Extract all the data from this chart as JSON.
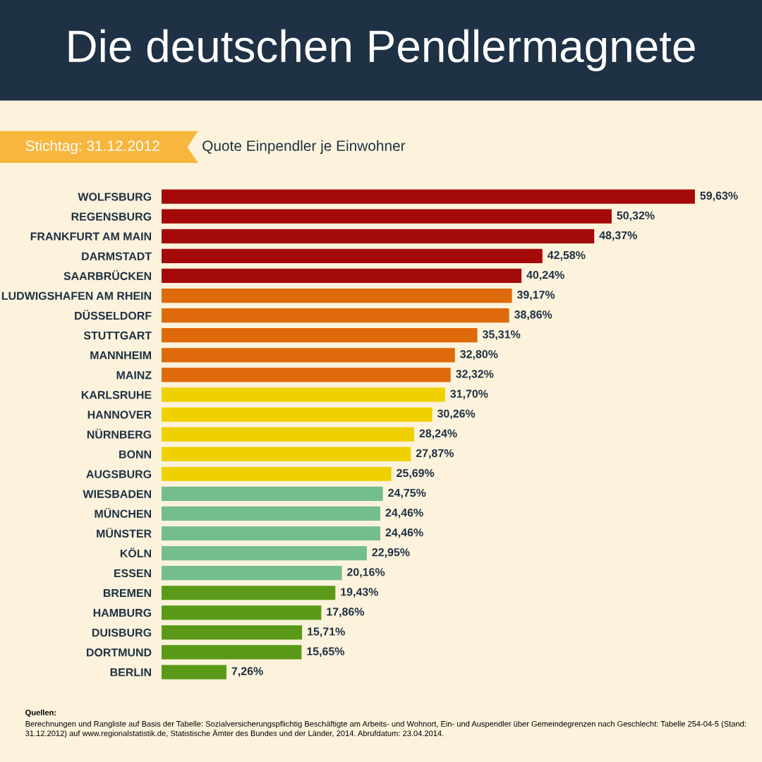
{
  "chart_data": {
    "type": "bar",
    "orientation": "horizontal",
    "title": "Die deutschen Pendlermagnete",
    "subtitle": "Quote Einpendler je Einwohner",
    "categories": [
      "WOLFSBURG",
      "REGENSBURG",
      "FRANKFURT AM MAIN",
      "DARMSTADT",
      "SAARBRÜCKEN",
      "LUDWIGSHAFEN AM RHEIN",
      "DÜSSELDORF",
      "STUTTGART",
      "MANNHEIM",
      "MAINZ",
      "KARLSRUHE",
      "HANNOVER",
      "NÜRNBERG",
      "BONN",
      "AUGSBURG",
      "WIESBADEN",
      "MÜNCHEN",
      "MÜNSTER",
      "KÖLN",
      "ESSEN",
      "BREMEN",
      "HAMBURG",
      "DUISBURG",
      "DORTMUND",
      "BERLIN"
    ],
    "values": [
      59.63,
      50.32,
      48.37,
      42.58,
      40.24,
      39.17,
      38.86,
      35.31,
      32.8,
      32.32,
      31.7,
      30.26,
      28.24,
      27.87,
      25.69,
      24.75,
      24.46,
      24.46,
      22.95,
      20.16,
      19.43,
      17.86,
      15.71,
      15.65,
      7.26
    ],
    "value_labels": [
      "59,63%",
      "50,32%",
      "48,37%",
      "42,58%",
      "40,24%",
      "39,17%",
      "38,86%",
      "35,31%",
      "32,80%",
      "32,32%",
      "31,70%",
      "30,26%",
      "28,24%",
      "27,87%",
      "25,69%",
      "24,75%",
      "24,46%",
      "24,46%",
      "22,95%",
      "20,16%",
      "19,43%",
      "17,86%",
      "15,71%",
      "15,65%",
      "7,26%"
    ],
    "colors": [
      "#a50a0a",
      "#a50a0a",
      "#a50a0a",
      "#a50a0a",
      "#a50a0a",
      "#de6a0c",
      "#de6a0c",
      "#de6a0c",
      "#de6a0c",
      "#de6a0c",
      "#efd000",
      "#efd000",
      "#efd000",
      "#efd000",
      "#efd000",
      "#74be8c",
      "#74be8c",
      "#74be8c",
      "#74be8c",
      "#74be8c",
      "#5a9a18",
      "#5a9a18",
      "#5a9a18",
      "#5a9a18",
      "#5a9a18"
    ],
    "annotations": [
      "Stichtag: 31.12.2012",
      "Quellen:",
      "Berechnungen und Rangliste auf Basis der Tabelle: Sozialversicherungspflichtig Beschäftigte am Arbeits- und Wohnort, Ein- und Auspendler über Gemeindegrenzen nach Geschlecht: Tabelle 254-04-5 (Stand: 31.12.2012) auf www.regionalstatistik.de, Statistische Ämter des Bundes und der Länder, 2014. Abrufdatum: 23.04.2014."
    ],
    "grid": false,
    "legend": false
  }
}
